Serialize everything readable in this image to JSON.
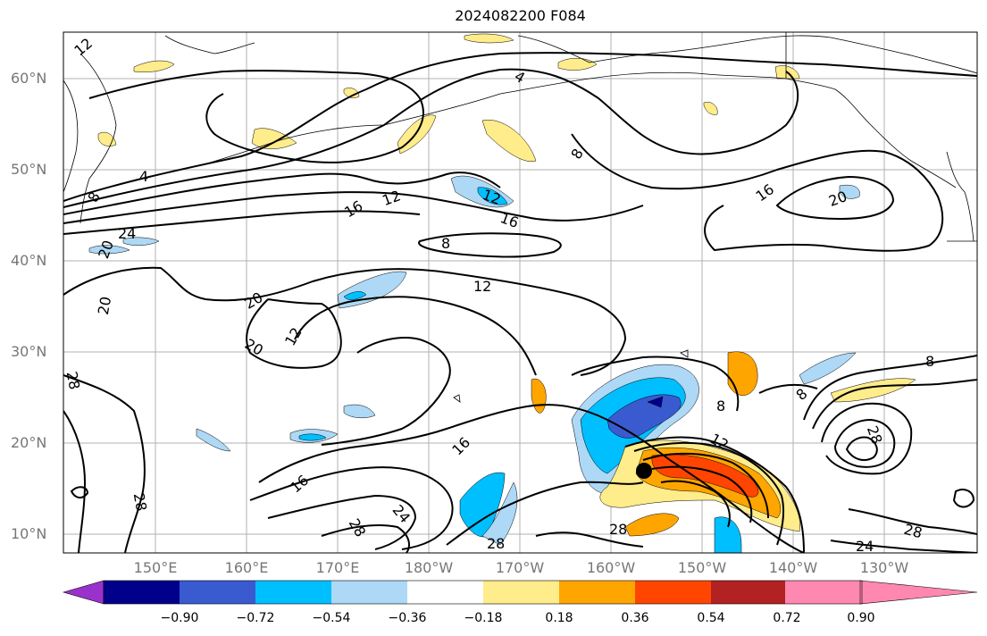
{
  "title": "2024082200 F084",
  "lat_labels": [
    "60°N",
    "50°N",
    "40°N",
    "30°N",
    "20°N",
    "10°N"
  ],
  "lon_labels": [
    "150°E",
    "160°E",
    "170°E",
    "180°W",
    "170°W",
    "160°W",
    "150°W",
    "140°W",
    "130°W"
  ],
  "colorbar": {
    "colors": [
      "#9932cc",
      "#00008b",
      "#3a5ad0",
      "#00bfff",
      "#add8f6",
      "#ffffff",
      "#ffec8b",
      "#ffa500",
      "#ff4500",
      "#b22222",
      "#ff88b0"
    ],
    "ticks": [
      "−0.90",
      "−0.72",
      "−0.54",
      "−0.36",
      "−0.18",
      "0.18",
      "0.36",
      "0.54",
      "0.72",
      "0.90"
    ]
  },
  "contour_labels": [
    "12",
    "4",
    "8",
    "4",
    "8",
    "16",
    "12",
    "16",
    "20",
    "12",
    "16",
    "24",
    "8",
    "12",
    "20",
    "20",
    "12",
    "20",
    "28",
    "20",
    "16",
    "16",
    "24",
    "28",
    "28",
    "28",
    "8",
    "12",
    "8",
    "28",
    "28",
    "24",
    "28",
    "8"
  ],
  "marker": "storm-center-dot"
}
